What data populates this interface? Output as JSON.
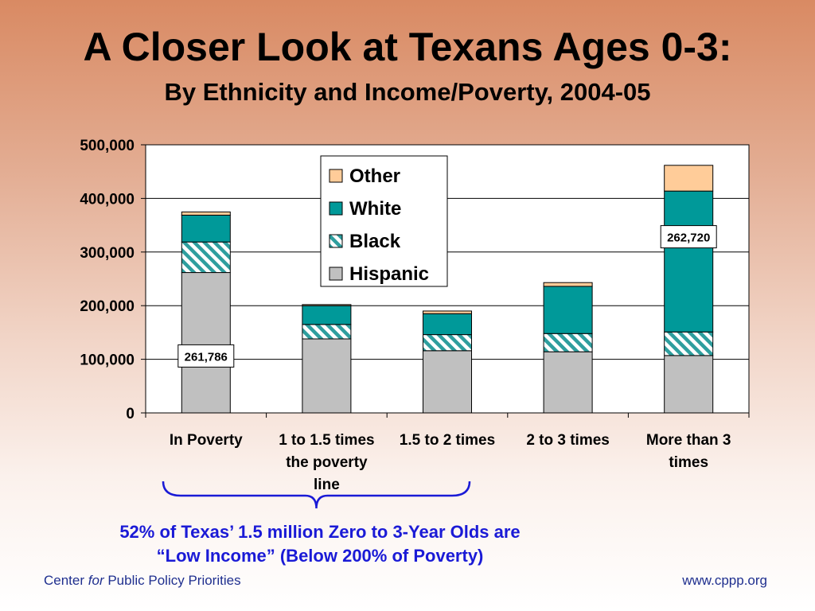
{
  "slide": {
    "title": "A Closer Look at Texans Ages 0-3:",
    "subtitle": "By Ethnicity and Income/Poverty, 2004-05",
    "caption_line1": "52% of Texas’ 1.5 million Zero to 3-Year Olds are",
    "caption_line2": "“Low Income” (Below 200% of Poverty)",
    "footer_org_prefix": "Center",
    "footer_org_italic": "for",
    "footer_org_suffix": "Public Policy Priorities",
    "footer_url": "www.cppp.org"
  },
  "colors": {
    "hispanic": "#c0c0c0",
    "black_stripe": "#2e9e9e",
    "white": "#009999",
    "other": "#ffcc99",
    "brace": "#1a1ad6",
    "caption": "#1a1ad6",
    "footer": "#1f2f8f"
  },
  "chart_data": {
    "type": "bar",
    "stacked": true,
    "categories": [
      [
        "In Poverty"
      ],
      [
        "1 to 1.5 times",
        "the poverty",
        "line"
      ],
      [
        "1.5 to 2 times"
      ],
      [
        "2 to 3 times"
      ],
      [
        "More than 3",
        "times"
      ]
    ],
    "series": [
      {
        "name": "Hispanic",
        "values": [
          261786,
          138000,
          116000,
          114000,
          107000
        ]
      },
      {
        "name": "Black",
        "values": [
          57000,
          27000,
          30000,
          34000,
          44000
        ]
      },
      {
        "name": "White",
        "values": [
          50000,
          35000,
          39000,
          88000,
          262720
        ]
      },
      {
        "name": "Other",
        "values": [
          6000,
          2000,
          5000,
          7000,
          48000
        ]
      }
    ],
    "data_labels": [
      {
        "category": 0,
        "series": "Hispanic",
        "text": "261,786"
      },
      {
        "category": 4,
        "series": "White",
        "text": "262,720"
      }
    ],
    "ylim": [
      0,
      500000
    ],
    "yticks": [
      0,
      100000,
      200000,
      300000,
      400000,
      500000
    ],
    "ytick_labels": [
      "0",
      "100,000",
      "200,000",
      "300,000",
      "400,000",
      "500,000"
    ],
    "legend_order": [
      "Other",
      "White",
      "Black",
      "Hispanic"
    ],
    "legend_position": "top-center",
    "grid": true,
    "bracket_over_categories": [
      0,
      2
    ]
  }
}
